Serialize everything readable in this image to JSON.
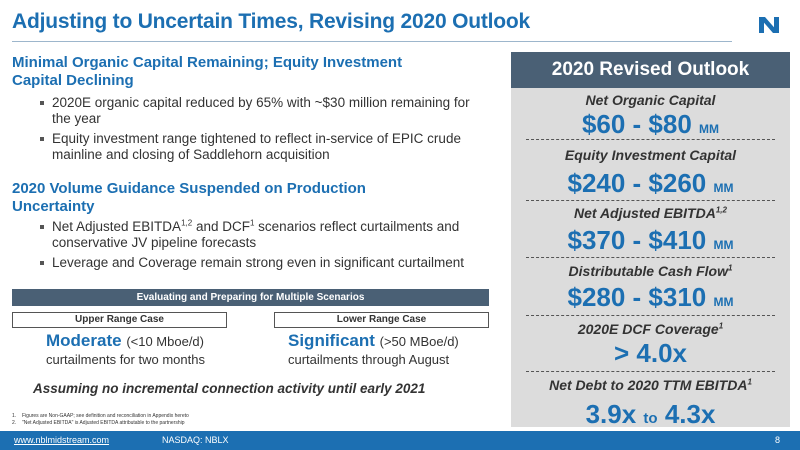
{
  "slide": {
    "title": "Adjusting to Uncertain Times, Revising 2020 Outlook",
    "logo_icon": "nblx-logo-icon",
    "accent_color": "#1c6fb2",
    "bar_color": "#4a6075"
  },
  "left": {
    "section1": {
      "heading_line1": "Minimal Organic Capital Remaining; Equity Investment",
      "heading_line2": "Capital Declining",
      "bullets": [
        "2020E organic capital reduced by 65% with ~$30 million remaining for the year",
        "Equity investment range tightened to reflect in-service of EPIC crude mainline and closing of Saddlehorn acquisition"
      ]
    },
    "section2": {
      "heading_line1": "2020 Volume Guidance Suspended on Production",
      "heading_line2": "Uncertainty",
      "bullet1_a": "Net Adjusted EBITDA",
      "bullet1_sup1": "1,2",
      "bullet1_b": " and DCF",
      "bullet1_sup2": "1",
      "bullet1_c": " scenarios reflect curtailments and conservative JV pipeline forecasts",
      "bullet2": "Leverage and Coverage remain strong even in significant curtailment"
    },
    "scenarios": {
      "bar_label": "Evaluating and Preparing for Multiple Scenarios",
      "upper": {
        "label": "Upper Range Case",
        "headline": "Moderate",
        "detail": "(<10 Mboe/d)",
        "description": "curtailments for two months"
      },
      "lower": {
        "label": "Lower Range Case",
        "headline": "Significant",
        "detail": "(>50 MBoe/d)",
        "description": "curtailments through August"
      },
      "assumption": "Assuming no incremental connection activity until early 2021"
    },
    "footnotes": [
      {
        "num": "1.",
        "text": "Figures are Non-GAAP; see definition and reconciliation in Appendix hereto"
      },
      {
        "num": "2.",
        "text": "\"Net Adjusted EBITDA\" is Adjusted EBITDA attributable to the partnership"
      }
    ]
  },
  "outlook": {
    "header": "2020 Revised Outlook",
    "net_organic_capital": {
      "label": "Net Organic Capital",
      "value": "$60 - $80",
      "unit": "MM"
    },
    "equity_investment": {
      "label": "Equity Investment Capital",
      "value": "$240 - $260",
      "unit": "MM"
    },
    "net_adj_ebitda": {
      "label": "Net Adjusted EBITDA",
      "sup": "1,2",
      "value": "$370 - $410",
      "unit": "MM"
    },
    "dcf": {
      "label": "Distributable Cash Flow",
      "sup": "1",
      "value": "$280 - $310",
      "unit": "MM"
    },
    "dcf_coverage": {
      "label": "2020E DCF Coverage",
      "sup": "1",
      "value": "> 4.0x"
    },
    "net_debt": {
      "label": "Net Debt to 2020 TTM EBITDA",
      "sup": "1",
      "value_low": "3.9x",
      "to": "to",
      "value_high": "4.3x"
    }
  },
  "footer": {
    "url": "www.nblmidstream.com",
    "ticker": "NASDAQ: NBLX",
    "page": "8"
  }
}
